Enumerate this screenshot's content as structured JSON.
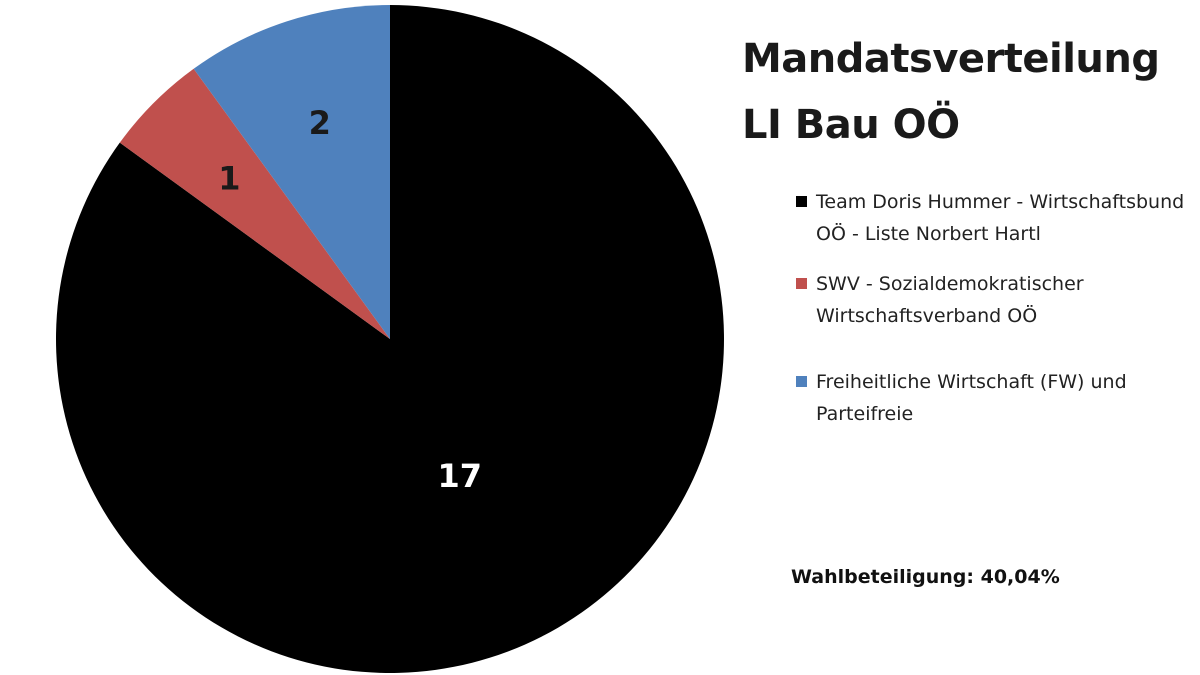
{
  "chart_data": {
    "type": "pie",
    "title": "Mandatsverteilung LI Bau OÖ",
    "title_lines": [
      "Mandatsverteilung",
      "LI Bau OÖ"
    ],
    "slices": [
      {
        "name": "Team Doris Hummer - Wirtschaftsbund OÖ - Liste Norbert Hartl",
        "value": 17,
        "label": "17",
        "color": "#000000",
        "label_color": "#ffffff"
      },
      {
        "name": "SWV - Sozialdemokratischer Wirtschaftsverband OÖ",
        "value": 1,
        "label": "1",
        "color": "#c0504d",
        "label_color": "#1a1a1a"
      },
      {
        "name": "Freiheitliche Wirtschaft (FW) und Parteifreie",
        "value": 2,
        "label": "2",
        "color": "#4f81bd",
        "label_color": "#1a1a1a"
      }
    ],
    "start_angle": "12 o'clock",
    "direction": "clockwise",
    "legend_position": "right",
    "annotation": "Wahlbeteiligung: 40,04%"
  }
}
